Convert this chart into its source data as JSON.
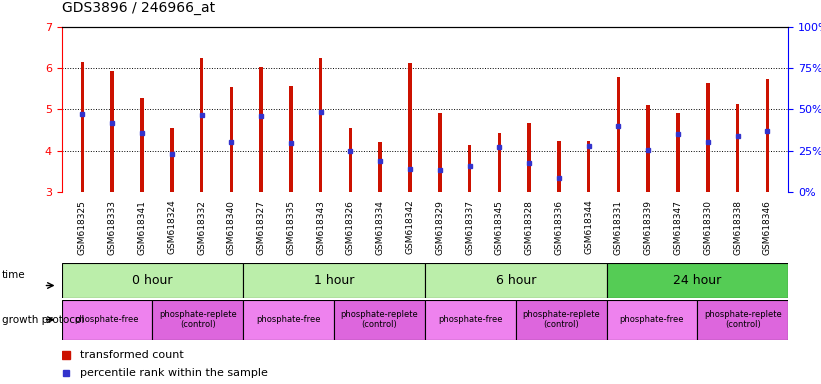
{
  "title": "GDS3896 / 246966_at",
  "samples": [
    "GSM618325",
    "GSM618333",
    "GSM618341",
    "GSM618324",
    "GSM618332",
    "GSM618340",
    "GSM618327",
    "GSM618335",
    "GSM618343",
    "GSM618326",
    "GSM618334",
    "GSM618342",
    "GSM618329",
    "GSM618337",
    "GSM618345",
    "GSM618328",
    "GSM618336",
    "GSM618344",
    "GSM618331",
    "GSM618339",
    "GSM618347",
    "GSM618330",
    "GSM618338",
    "GSM618346"
  ],
  "bar_tops": [
    6.15,
    5.93,
    5.27,
    4.56,
    6.24,
    5.55,
    6.04,
    5.56,
    6.24,
    4.55,
    4.22,
    6.12,
    4.92,
    4.14,
    4.43,
    4.68,
    4.24,
    4.23,
    5.78,
    5.1,
    4.91,
    5.64,
    5.14,
    5.74
  ],
  "blue_positions": [
    4.9,
    4.66,
    4.43,
    3.93,
    4.87,
    4.22,
    4.84,
    4.19,
    4.93,
    4.0,
    3.76,
    3.56,
    3.53,
    3.63,
    4.08,
    3.7,
    3.33,
    4.11,
    4.6,
    4.02,
    4.41,
    4.22,
    4.36,
    4.48
  ],
  "ylim_left": [
    3,
    7
  ],
  "ylim_right": [
    0,
    100
  ],
  "yticks_left": [
    3,
    4,
    5,
    6,
    7
  ],
  "yticks_right": [
    0,
    25,
    50,
    75,
    100
  ],
  "bar_color": "#CC1100",
  "blue_color": "#3333CC",
  "time_groups": [
    {
      "label": "0 hour",
      "start": 0,
      "end": 6
    },
    {
      "label": "1 hour",
      "start": 6,
      "end": 12
    },
    {
      "label": "6 hour",
      "start": 12,
      "end": 18
    },
    {
      "label": "24 hour",
      "start": 18,
      "end": 24
    }
  ],
  "protocol_groups": [
    {
      "label": "phosphate-free",
      "start": 0,
      "end": 3,
      "color": "#EE82EE"
    },
    {
      "label": "phosphate-replete\n(control)",
      "start": 3,
      "end": 6,
      "color": "#DD66DD"
    },
    {
      "label": "phosphate-free",
      "start": 6,
      "end": 9,
      "color": "#EE82EE"
    },
    {
      "label": "phosphate-replete\n(control)",
      "start": 9,
      "end": 12,
      "color": "#DD66DD"
    },
    {
      "label": "phosphate-free",
      "start": 12,
      "end": 15,
      "color": "#EE82EE"
    },
    {
      "label": "phosphate-replete\n(control)",
      "start": 15,
      "end": 18,
      "color": "#DD66DD"
    },
    {
      "label": "phosphate-free",
      "start": 18,
      "end": 21,
      "color": "#EE82EE"
    },
    {
      "label": "phosphate-replete\n(control)",
      "start": 21,
      "end": 24,
      "color": "#DD66DD"
    }
  ],
  "time_colors": [
    "#BBEEAA",
    "#BBEEAA",
    "#BBEEAA",
    "#55CC55"
  ],
  "bg_color": "#FFFFFF",
  "bar_width": 0.12
}
